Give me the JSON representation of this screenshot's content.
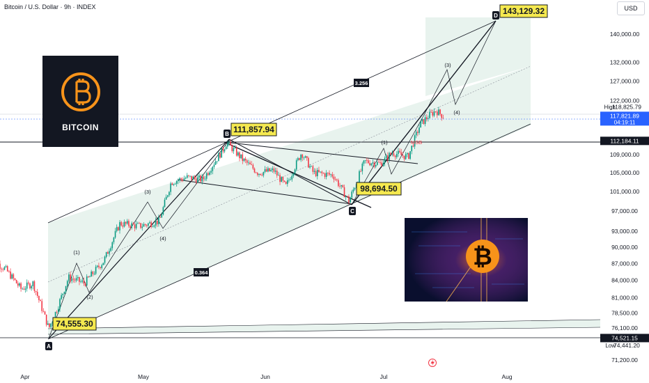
{
  "title": "Bitcoin / U.S. Dollar · 9h · INDEX",
  "currency_label": "USD",
  "logo_label": "BITCOIN",
  "colors": {
    "up": "#089981",
    "down": "#f23645",
    "channel_fill": "#e8f3ee",
    "callout": "#f5e94f",
    "text": "#131722"
  },
  "icons": {
    "bitcoin": "bitcoin-logo-icon",
    "event": "lightning-bolt-icon"
  },
  "chart_data": {
    "type": "line",
    "title": "",
    "xlabel": "",
    "ylabel": "",
    "x_ticks": [
      "Apr",
      "May",
      "Jun",
      "Jul",
      "Aug"
    ],
    "y_ticks": [
      "140,000.00",
      "132,000.00",
      "127,000.00",
      "122,000.00",
      "118,825.79",
      "117,821.89",
      "112,184.11",
      "109,000.00",
      "105,000.00",
      "101,000.00",
      "97,000.00",
      "93,000.00",
      "90,000.00",
      "87,000.00",
      "84,000.00",
      "81,000.00",
      "78,500.00",
      "76,100.00",
      "74,521.15",
      "74,441.20",
      "71,200.00"
    ],
    "ylim": [
      70000,
      152000
    ],
    "y_scale": "log",
    "series": [
      {
        "x": [
          "Mar 23",
          "Mar 27",
          "Mar 31",
          "Apr 3",
          "Apr 7",
          "Apr 9",
          "Apr 12",
          "Apr 16",
          "Apr 21",
          "Apr 25",
          "Apr 30",
          "May 5",
          "May 8",
          "May 12",
          "May 16",
          "May 21",
          "May 22",
          "May 26",
          "May 30",
          "Jun 3",
          "Jun 6",
          "Jun 10",
          "Jun 13",
          "Jun 18",
          "Jun 22",
          "Jun 26",
          "Jun 30",
          "Jul 3",
          "Jul 7",
          "Jul 10",
          "Jul 12",
          "Jul 14",
          "Jul 16"
        ],
        "values": [
          88000,
          86000,
          82500,
          83500,
          76000,
          79000,
          84500,
          83500,
          87500,
          94500,
          94000,
          95000,
          103000,
          104000,
          103500,
          110000,
          111800,
          108000,
          105000,
          105500,
          102000,
          109500,
          105000,
          104500,
          99000,
          107500,
          107000,
          109500,
          108500,
          116000,
          118000,
          119500,
          118000
        ]
      }
    ],
    "annotations": {
      "pivots": [
        "A",
        "B",
        "C",
        "D"
      ],
      "waves": [
        "(1)",
        "(2)",
        "(3)",
        "(4)",
        "(1)",
        "(3)",
        "(4)"
      ],
      "callouts": [
        "74,555.30",
        "111,857.94",
        "98,694.50",
        "143,129.32"
      ],
      "fib_labels": [
        "0.364",
        "3.256"
      ],
      "msb_label": "MSB",
      "high_label": "High",
      "low_label": "Low",
      "countdown": "04:19:11"
    }
  }
}
